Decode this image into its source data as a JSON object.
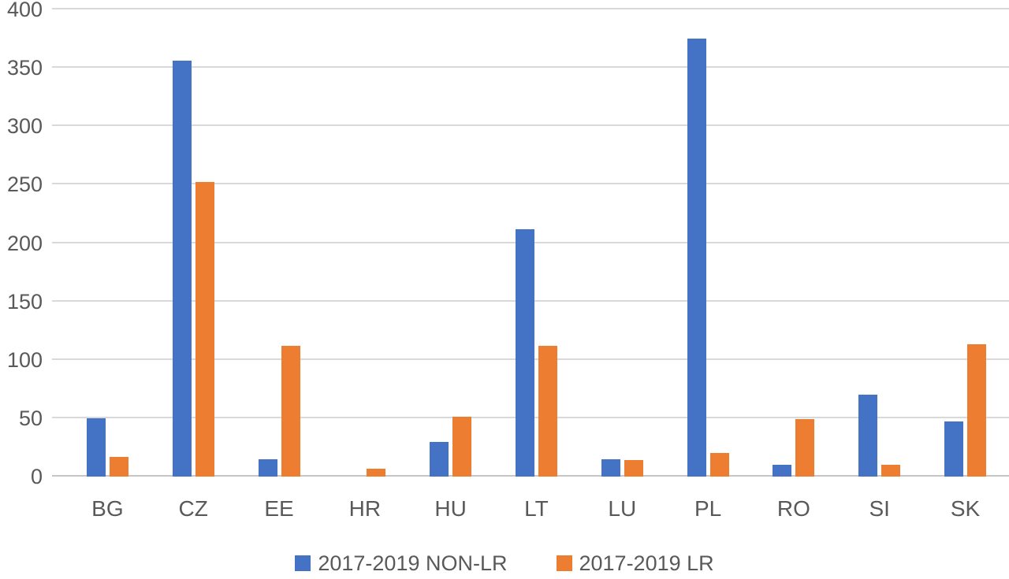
{
  "chart_data": {
    "type": "bar",
    "title": "",
    "xlabel": "",
    "ylabel": "",
    "categories": [
      "BG",
      "CZ",
      "EE",
      "HR",
      "HU",
      "LT",
      "LU",
      "PL",
      "RO",
      "SI",
      "SK"
    ],
    "series": [
      {
        "name": "2017-2019 NON-LR",
        "color": "#4472C4",
        "values": [
          50,
          356,
          15,
          0,
          30,
          212,
          15,
          375,
          10,
          70,
          47
        ]
      },
      {
        "name": "2017-2019 LR",
        "color": "#ED7D31",
        "values": [
          17,
          252,
          112,
          7,
          51,
          112,
          14,
          20,
          49,
          10,
          113
        ]
      }
    ],
    "ylim": [
      0,
      400
    ],
    "yticks": [
      0,
      50,
      100,
      150,
      200,
      250,
      300,
      350,
      400
    ],
    "grid": true,
    "legend_position": "bottom"
  },
  "colors": {
    "gridline": "#D9D9D9",
    "baseline": "#C6C6C6",
    "axis_text": "#595959",
    "background": "#FFFFFF"
  }
}
